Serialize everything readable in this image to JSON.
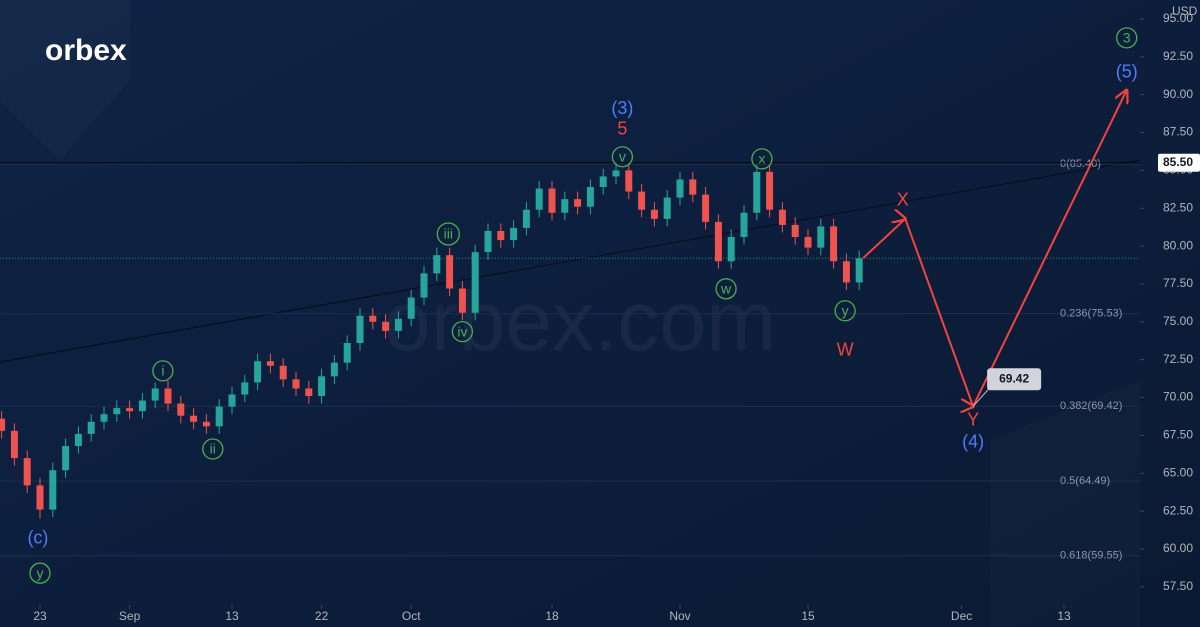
{
  "brand": "orbex",
  "watermark": "orbex.com",
  "chart_data": {
    "type": "candlestick",
    "currency": "USD",
    "x": [
      -3,
      -2,
      -1,
      0,
      1,
      2,
      3,
      4,
      5,
      6,
      7,
      8,
      9,
      10,
      11,
      12,
      13,
      14,
      15,
      16,
      17,
      18,
      19,
      20,
      21,
      22,
      23,
      24,
      25,
      26,
      27,
      28,
      29,
      30,
      31,
      32,
      33,
      34,
      35,
      36,
      37,
      38,
      39,
      40,
      41,
      42,
      43,
      44,
      45,
      46,
      47,
      48,
      49,
      50,
      51,
      52,
      53,
      54,
      55,
      56,
      57,
      58,
      59,
      60,
      61,
      62,
      63,
      64
    ],
    "open": [
      68.6,
      67.8,
      66.0,
      64.2,
      62.6,
      65.2,
      66.8,
      67.6,
      68.4,
      68.9,
      69.3,
      69.1,
      69.8,
      70.6,
      69.6,
      68.8,
      68.4,
      68.1,
      69.4,
      70.2,
      71.0,
      72.4,
      72.1,
      71.2,
      70.6,
      70.1,
      71.4,
      72.3,
      73.6,
      75.4,
      75.0,
      74.4,
      75.2,
      76.6,
      78.2,
      79.4,
      77.2,
      75.6,
      79.6,
      81.0,
      80.4,
      81.2,
      82.4,
      83.8,
      82.2,
      83.1,
      82.6,
      83.9,
      84.6,
      85.0,
      83.6,
      82.4,
      81.8,
      83.2,
      84.4,
      83.4,
      81.6,
      79.0,
      80.6,
      82.2,
      84.9,
      82.4,
      81.4,
      80.6,
      79.9,
      81.3,
      79.0,
      77.6
    ],
    "high": [
      69.1,
      68.3,
      66.5,
      64.7,
      65.7,
      67.3,
      68.1,
      68.9,
      69.4,
      69.8,
      69.8,
      70.3,
      71.0,
      71.1,
      70.1,
      69.3,
      68.9,
      69.9,
      70.7,
      71.5,
      72.9,
      72.9,
      72.6,
      71.7,
      71.1,
      71.9,
      72.8,
      74.1,
      75.9,
      75.9,
      75.5,
      75.7,
      77.1,
      78.7,
      79.9,
      79.9,
      77.7,
      80.1,
      81.5,
      81.5,
      81.7,
      82.9,
      84.3,
      84.3,
      83.6,
      83.6,
      84.4,
      85.1,
      85.5,
      85.5,
      84.1,
      82.9,
      83.7,
      84.9,
      84.9,
      83.9,
      82.1,
      81.1,
      82.7,
      85.4,
      85.4,
      82.9,
      81.9,
      81.1,
      81.8,
      81.8,
      79.5,
      79.7
    ],
    "low": [
      67.3,
      65.5,
      63.7,
      62.0,
      62.1,
      64.7,
      66.3,
      67.1,
      67.9,
      68.4,
      68.6,
      68.6,
      69.3,
      69.1,
      68.3,
      67.9,
      67.6,
      67.6,
      68.9,
      69.7,
      70.5,
      71.6,
      70.7,
      70.1,
      69.6,
      69.6,
      70.9,
      71.8,
      73.1,
      74.5,
      73.9,
      73.9,
      74.7,
      76.1,
      77.7,
      76.7,
      75.1,
      75.1,
      79.1,
      79.9,
      79.9,
      80.7,
      81.9,
      81.7,
      81.7,
      82.1,
      82.1,
      83.4,
      84.1,
      83.1,
      81.9,
      81.3,
      81.3,
      82.7,
      82.9,
      81.1,
      78.5,
      78.5,
      80.1,
      81.7,
      81.9,
      80.9,
      80.1,
      79.4,
      79.4,
      78.5,
      77.1,
      77.1
    ],
    "close": [
      67.8,
      66.0,
      64.2,
      62.6,
      65.2,
      66.8,
      67.6,
      68.4,
      68.9,
      69.3,
      69.1,
      69.8,
      70.6,
      69.6,
      68.8,
      68.4,
      68.1,
      69.4,
      70.2,
      71.0,
      72.4,
      72.1,
      71.2,
      70.6,
      70.1,
      71.4,
      72.3,
      73.6,
      75.4,
      75.0,
      74.4,
      75.2,
      76.6,
      78.2,
      79.4,
      77.2,
      75.6,
      79.6,
      81.0,
      80.4,
      81.2,
      82.4,
      83.8,
      82.2,
      83.1,
      82.6,
      83.9,
      84.6,
      85.0,
      83.6,
      82.4,
      81.8,
      83.2,
      84.4,
      83.4,
      81.6,
      79.0,
      80.6,
      82.2,
      84.9,
      82.4,
      81.4,
      80.6,
      79.9,
      81.3,
      79.0,
      77.6,
      79.2
    ],
    "up_color": "#26a69a",
    "down_color": "#ef5350",
    "xlim": [
      -3.125,
      85.9375
    ],
    "xticks": [
      {
        "value": 0,
        "label": "23"
      },
      {
        "value": 7,
        "label": "Sep"
      },
      {
        "value": 15,
        "label": "13"
      },
      {
        "value": 22,
        "label": "22"
      },
      {
        "value": 29,
        "label": "Oct"
      },
      {
        "value": 40,
        "label": "18"
      },
      {
        "value": 50,
        "label": "Nov"
      },
      {
        "value": 60,
        "label": "15"
      },
      {
        "value": 72,
        "label": "Dec"
      },
      {
        "value": 80,
        "label": "13"
      }
    ],
    "ylim": [
      56.3,
      96.25
    ],
    "yticks": [
      {
        "value": 57.5,
        "label": "57.50"
      },
      {
        "value": 60,
        "label": "60.00"
      },
      {
        "value": 62.5,
        "label": "62.50"
      },
      {
        "value": 65,
        "label": "65.00"
      },
      {
        "value": 67.5,
        "label": "67.50"
      },
      {
        "value": 70,
        "label": "70.00"
      },
      {
        "value": 72.5,
        "label": "72.50"
      },
      {
        "value": 75,
        "label": "75.00"
      },
      {
        "value": 77.5,
        "label": "77.50"
      },
      {
        "value": 80,
        "label": "80.00"
      },
      {
        "value": 82.5,
        "label": "82.50"
      },
      {
        "value": 85,
        "label": "85.00"
      },
      {
        "value": 87.5,
        "label": "87.50"
      },
      {
        "value": 90,
        "label": "90.00"
      },
      {
        "value": 92.5,
        "label": "92.50"
      },
      {
        "value": 95,
        "label": "95.00"
      }
    ],
    "price_line": {
      "value": 85.5,
      "label": "85.50"
    },
    "fib_levels": [
      {
        "label": "0(85.40)",
        "value": 85.4
      },
      {
        "label": "0.236(75.53)",
        "value": 75.53
      },
      {
        "label": "0.382(69.42)",
        "value": 69.42
      },
      {
        "label": "0.5(64.49)",
        "value": 64.49
      },
      {
        "label": "0.618(59.55)",
        "value": 59.55
      }
    ],
    "projection": {
      "color": "#f4433f",
      "x": [
        64.3,
        67.6,
        72.9,
        84.9
      ],
      "y": [
        79.2,
        81.8,
        69.42,
        90.3
      ],
      "value_labels": [
        null,
        null,
        "69.42",
        null
      ]
    },
    "annotations": [
      {
        "text": "(c)",
        "color": "#4d7cff",
        "circled": false,
        "x": -0.16,
        "y": 60.74
      },
      {
        "text": "y",
        "color": "#4caf50",
        "circled": true,
        "x": 0,
        "y": 58.4
      },
      {
        "text": "i",
        "color": "#4caf50",
        "circled": true,
        "x": 9.6,
        "y": 71.76
      },
      {
        "text": "ii",
        "color": "#4caf50",
        "circled": true,
        "x": 13.5,
        "y": 66.6
      },
      {
        "text": "iii",
        "color": "#4caf50",
        "circled": true,
        "x": 31.9,
        "y": 80.8
      },
      {
        "text": "iv",
        "color": "#4caf50",
        "circled": true,
        "x": 33.0,
        "y": 74.35
      },
      {
        "text": "v",
        "color": "#4caf50",
        "circled": true,
        "x": 45.5,
        "y": 85.9
      },
      {
        "text": "5",
        "color": "#f4433f",
        "circled": false,
        "x": 45.5,
        "y": 87.75
      },
      {
        "text": "(3)",
        "color": "#4d7cff",
        "circled": false,
        "x": 45.5,
        "y": 89.1
      },
      {
        "text": "w",
        "color": "#4caf50",
        "circled": true,
        "x": 53.6,
        "y": 77.18
      },
      {
        "text": "x",
        "color": "#4caf50",
        "circled": true,
        "x": 56.4,
        "y": 85.76
      },
      {
        "text": "y",
        "color": "#4caf50",
        "circled": true,
        "x": 62.9,
        "y": 75.73
      },
      {
        "text": "W",
        "color": "#f4433f",
        "circled": false,
        "x": 62.9,
        "y": 73.15
      },
      {
        "text": "X",
        "color": "#f4433f",
        "circled": false,
        "x": 67.4,
        "y": 83.06
      },
      {
        "text": "Y",
        "color": "#f4433f",
        "circled": false,
        "x": 72.9,
        "y": 68.53
      },
      {
        "text": "(4)",
        "color": "#4d7cff",
        "circled": false,
        "x": 72.9,
        "y": 67.08
      },
      {
        "text": "(5)",
        "color": "#4d7cff",
        "circled": false,
        "x": 84.9,
        "y": 91.5
      },
      {
        "text": "3",
        "color": "#4caf50",
        "circled": true,
        "x": 84.9,
        "y": 93.75
      }
    ]
  }
}
